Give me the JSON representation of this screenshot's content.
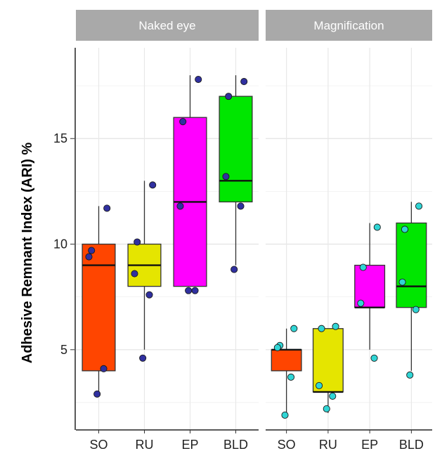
{
  "chart_data": {
    "type": "boxplot",
    "ylabel": "Adhesive Remnant Index (ARI) %",
    "ylim": [
      1.2,
      19.3
    ],
    "y_ticks": [
      5,
      10,
      15
    ],
    "grid": true,
    "categories": [
      "SO",
      "RU",
      "EP",
      "BLD"
    ],
    "colors": {
      "SO": "#ff4500",
      "RU": "#e5e500",
      "EP": "#ff00ff",
      "BLD": "#00e600"
    },
    "panels": [
      {
        "title": "Naked eye",
        "point_color": "#3030a0",
        "boxes": [
          {
            "category": "SO",
            "min": 3,
            "q1": 4,
            "median": 9,
            "q3": 10,
            "max": 11.8,
            "points": [
              11.7,
              9.7,
              9.4,
              4.1,
              2.9
            ]
          },
          {
            "category": "RU",
            "min": 5,
            "q1": 8,
            "median": 9,
            "q3": 10,
            "max": 13,
            "points": [
              12.8,
              10.1,
              8.6,
              7.6,
              4.6
            ]
          },
          {
            "category": "EP",
            "min": 8,
            "q1": 8,
            "median": 12,
            "q3": 16,
            "max": 18,
            "points": [
              17.8,
              15.8,
              11.8,
              7.8,
              7.8
            ]
          },
          {
            "category": "BLD",
            "min": 9,
            "q1": 12,
            "median": 13,
            "q3": 17,
            "max": 18,
            "points": [
              17.7,
              17.0,
              13.2,
              11.8,
              8.8
            ]
          }
        ]
      },
      {
        "title": "Magnification",
        "point_color": "#30d5d5",
        "boxes": [
          {
            "category": "SO",
            "min": 2,
            "q1": 4,
            "median": 5,
            "q3": 5,
            "max": 6,
            "points": [
              6.0,
              5.2,
              5.1,
              3.7,
              1.9
            ]
          },
          {
            "category": "RU",
            "min": 2,
            "q1": 3,
            "median": 3,
            "q3": 6,
            "max": 6,
            "points": [
              6.1,
              6.0,
              3.3,
              2.8,
              2.2
            ]
          },
          {
            "category": "EP",
            "min": 5,
            "q1": 7,
            "median": 7,
            "q3": 9,
            "max": 11,
            "points": [
              10.8,
              8.9,
              7.2,
              4.6
            ]
          },
          {
            "category": "BLD",
            "min": 4,
            "q1": 7,
            "median": 8,
            "q3": 11,
            "max": 12,
            "points": [
              11.8,
              10.7,
              8.2,
              6.9,
              3.8
            ]
          }
        ]
      }
    ]
  }
}
